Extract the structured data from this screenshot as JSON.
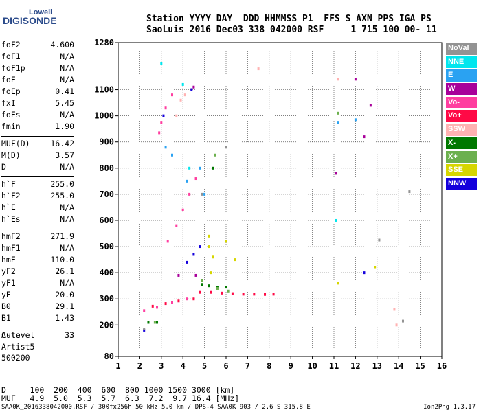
{
  "logo": {
    "line1": "Lowell",
    "line2": "DIGISONDE"
  },
  "header": {
    "line1": "Station YYYY DAY  DDD HHMMSS P1  FFS S AXN PPS IGA PS",
    "line2": "SaoLuis 2016 Dec03 338 042000 RSF     1 715 100 00- 11"
  },
  "params": {
    "group1": [
      {
        "k": "foF2",
        "v": "4.600"
      },
      {
        "k": "foF1",
        "v": "N/A"
      },
      {
        "k": "foF1p",
        "v": "N/A"
      },
      {
        "k": "foE",
        "v": "N/A"
      },
      {
        "k": "foEp",
        "v": "0.41"
      },
      {
        "k": "fxI",
        "v": "5.45"
      },
      {
        "k": "foEs",
        "v": "N/A"
      },
      {
        "k": "fmin",
        "v": "1.90"
      }
    ],
    "group2": [
      {
        "k": "MUF(D)",
        "v": "16.42"
      },
      {
        "k": "M(D)",
        "v": "3.57"
      },
      {
        "k": "D",
        "v": "N/A"
      }
    ],
    "group3": [
      {
        "k": "h`F",
        "v": "255.0"
      },
      {
        "k": "h`F2",
        "v": "255.0"
      },
      {
        "k": "h`E",
        "v": "N/A"
      },
      {
        "k": "h`Es",
        "v": "N/A"
      }
    ],
    "group4": [
      {
        "k": "hmF2",
        "v": "271.9"
      },
      {
        "k": "hmF1",
        "v": "N/A"
      },
      {
        "k": "hmE",
        "v": "110.0"
      },
      {
        "k": "yF2",
        "v": "26.1"
      },
      {
        "k": "yF1",
        "v": "N/A"
      },
      {
        "k": "yE",
        "v": "20.0"
      },
      {
        "k": "B0",
        "v": "29.1"
      },
      {
        "k": "B1",
        "v": "1.43"
      }
    ],
    "group5": [
      {
        "k": "C-level",
        "v": "33"
      }
    ]
  },
  "auto": {
    "line1": "Auto:",
    "line2": "Artist5",
    "line3": "500200"
  },
  "footer": {
    "d_line": "D     100  200  400  600  800 1000 1500 3000 [km]",
    "muf_line": "MUF   4.9  5.0  5.3  5.7  6.3  7.2  9.7 16.4 [MHz]",
    "file_line": "SAA0K_2016338042000.RSF / 300fx256h 50 kHz 5.0 km / DPS-4 SAA0K 903 / 2.6 S 315.8 E",
    "version": "Ion2Png 1.3.17"
  },
  "legend": [
    {
      "label": "NoVal",
      "color": "#939393"
    },
    {
      "label": "NNE",
      "color": "#00e6ee"
    },
    {
      "label": "E",
      "color": "#2aa2f2"
    },
    {
      "label": "W",
      "color": "#a8009a"
    },
    {
      "label": "Vo-",
      "color": "#ff3ea0"
    },
    {
      "label": "Vo+",
      "color": "#ff0a46"
    },
    {
      "label": "SSW",
      "color": "#ffb2b2"
    },
    {
      "label": "X-",
      "color": "#007800"
    },
    {
      "label": "X+",
      "color": "#6cb04e"
    },
    {
      "label": "SSE",
      "color": "#d6d600"
    },
    {
      "label": "NNW",
      "color": "#1400dc"
    }
  ],
  "chart_data": {
    "type": "scatter",
    "xlabel": "",
    "ylabel": "",
    "xlim": [
      1,
      16
    ],
    "ylim": [
      80,
      1280
    ],
    "x_ticks": [
      1,
      2,
      3,
      4,
      5,
      6,
      7,
      8,
      9,
      10,
      11,
      12,
      13,
      14,
      15,
      16
    ],
    "y_ticks": [
      80,
      200,
      300,
      400,
      500,
      600,
      700,
      800,
      900,
      1000,
      1100,
      1280
    ],
    "grid": true,
    "series": [
      {
        "color": "#ff0a46",
        "points": [
          [
            4.8,
            325
          ],
          [
            5.3,
            325
          ],
          [
            5.8,
            322
          ],
          [
            6.3,
            320
          ],
          [
            6.8,
            318
          ],
          [
            7.3,
            318
          ],
          [
            7.8,
            317
          ],
          [
            8.2,
            318
          ],
          [
            4.5,
            300
          ],
          [
            3.8,
            292
          ],
          [
            3.2,
            282
          ],
          [
            2.6,
            272
          ]
        ]
      },
      {
        "color": "#ff3ea0",
        "points": [
          [
            2.2,
            255
          ],
          [
            2.8,
            268
          ],
          [
            3.5,
            285
          ],
          [
            4.2,
            300
          ],
          [
            3.3,
            520
          ],
          [
            3.7,
            580
          ],
          [
            4.0,
            640
          ],
          [
            4.3,
            700
          ],
          [
            4.6,
            760
          ],
          [
            2.9,
            935
          ],
          [
            3.0,
            975
          ],
          [
            3.2,
            1030
          ],
          [
            3.5,
            1080
          ]
        ]
      },
      {
        "color": "#1400dc",
        "points": [
          [
            4.2,
            440
          ],
          [
            4.5,
            470
          ],
          [
            4.8,
            500
          ],
          [
            3.1,
            1000
          ],
          [
            2.2,
            180
          ],
          [
            4.4,
            1100
          ],
          [
            12.4,
            400
          ]
        ]
      },
      {
        "color": "#2aa2f2",
        "points": [
          [
            4.2,
            750
          ],
          [
            4.8,
            800
          ],
          [
            5.0,
            700
          ],
          [
            3.2,
            880
          ],
          [
            3.5,
            850
          ],
          [
            11.2,
            975
          ],
          [
            12.0,
            985
          ]
        ]
      },
      {
        "color": "#d6d600",
        "points": [
          [
            5.2,
            500
          ],
          [
            5.4,
            460
          ],
          [
            5.3,
            400
          ],
          [
            5.2,
            540
          ],
          [
            6.0,
            520
          ],
          [
            6.4,
            450
          ],
          [
            11.2,
            360
          ],
          [
            12.9,
            420
          ]
        ]
      },
      {
        "color": "#007800",
        "points": [
          [
            4.9,
            355
          ],
          [
            5.2,
            350
          ],
          [
            5.6,
            345
          ],
          [
            6.0,
            345
          ],
          [
            2.4,
            210
          ],
          [
            2.8,
            210
          ],
          [
            5.4,
            800
          ]
        ]
      },
      {
        "color": "#6cb04e",
        "points": [
          [
            4.9,
            370
          ],
          [
            5.6,
            340
          ],
          [
            6.1,
            330
          ],
          [
            2.7,
            210
          ],
          [
            5.5,
            850
          ],
          [
            11.2,
            1010
          ]
        ]
      },
      {
        "color": "#a8009a",
        "points": [
          [
            4.6,
            390
          ],
          [
            3.8,
            390
          ],
          [
            4.5,
            1110
          ],
          [
            11.1,
            780
          ],
          [
            12.0,
            1140
          ],
          [
            12.4,
            920
          ],
          [
            12.7,
            1040
          ]
        ]
      },
      {
        "color": "#00e6ee",
        "points": [
          [
            4.3,
            800
          ],
          [
            4.0,
            1120
          ],
          [
            3.0,
            1200
          ],
          [
            11.1,
            600
          ]
        ]
      },
      {
        "color": "#ffb2b2",
        "points": [
          [
            3.7,
            1000
          ],
          [
            3.9,
            1060
          ],
          [
            4.1,
            1080
          ],
          [
            13.9,
            200
          ],
          [
            13.8,
            260
          ],
          [
            11.2,
            1140
          ],
          [
            7.5,
            1180
          ]
        ]
      },
      {
        "color": "#939393",
        "points": [
          [
            4.9,
            700
          ],
          [
            6.0,
            880
          ],
          [
            2.2,
            185
          ],
          [
            14.5,
            710
          ],
          [
            13.1,
            525
          ],
          [
            14.2,
            215
          ]
        ]
      }
    ]
  }
}
